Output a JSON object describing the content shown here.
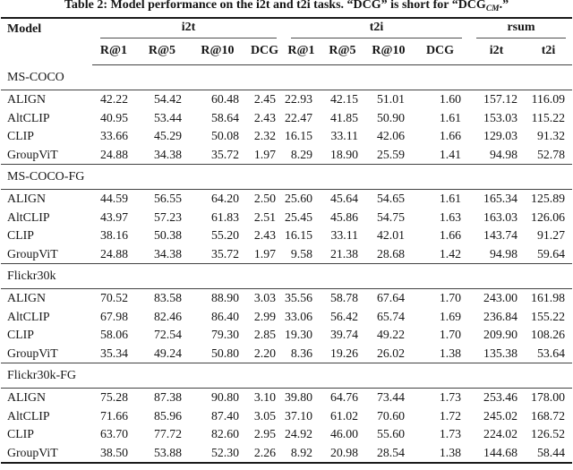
{
  "title": {
    "prefix": "Table 2: Model performance on the i2t and t2i tasks. “DCG” is short for “DCG",
    "subscript": "CM",
    "suffix": ".”"
  },
  "header": {
    "model": "Model",
    "groups": [
      {
        "label": "i2t",
        "cols": [
          "R@1",
          "R@5",
          "R@10",
          "DCG"
        ]
      },
      {
        "label": "t2i",
        "cols": [
          "R@1",
          "R@5",
          "R@10",
          "DCG"
        ]
      },
      {
        "label": "rsum",
        "cols": [
          "i2t",
          "t2i"
        ]
      }
    ]
  },
  "sections": [
    {
      "name": "MS-COCO",
      "rows": [
        {
          "model": "ALIGN",
          "values": [
            "42.22",
            "54.42",
            "60.48",
            "2.45",
            "22.93",
            "42.15",
            "51.01",
            "1.60",
            "157.12",
            "116.09"
          ]
        },
        {
          "model": "AltCLIP",
          "values": [
            "40.95",
            "53.44",
            "58.64",
            "2.43",
            "22.47",
            "41.85",
            "50.90",
            "1.61",
            "153.03",
            "115.22"
          ]
        },
        {
          "model": "CLIP",
          "values": [
            "33.66",
            "45.29",
            "50.08",
            "2.32",
            "16.15",
            "33.11",
            "42.06",
            "1.66",
            "129.03",
            "91.32"
          ]
        },
        {
          "model": "GroupViT",
          "values": [
            "24.88",
            "34.38",
            "35.72",
            "1.97",
            "8.29",
            "18.90",
            "25.59",
            "1.41",
            "94.98",
            "52.78"
          ]
        }
      ]
    },
    {
      "name": "MS-COCO-FG",
      "rows": [
        {
          "model": "ALIGN",
          "values": [
            "44.59",
            "56.55",
            "64.20",
            "2.50",
            "25.60",
            "45.64",
            "54.65",
            "1.61",
            "165.34",
            "125.89"
          ]
        },
        {
          "model": "AltCLIP",
          "values": [
            "43.97",
            "57.23",
            "61.83",
            "2.51",
            "25.45",
            "45.86",
            "54.75",
            "1.63",
            "163.03",
            "126.06"
          ]
        },
        {
          "model": "CLIP",
          "values": [
            "38.16",
            "50.38",
            "55.20",
            "2.43",
            "16.15",
            "33.11",
            "42.01",
            "1.66",
            "143.74",
            "91.27"
          ]
        },
        {
          "model": "GroupViT",
          "values": [
            "24.88",
            "34.38",
            "35.72",
            "1.97",
            "9.58",
            "21.38",
            "28.68",
            "1.42",
            "94.98",
            "59.64"
          ]
        }
      ]
    },
    {
      "name": "Flickr30k",
      "rows": [
        {
          "model": "ALIGN",
          "values": [
            "70.52",
            "83.58",
            "88.90",
            "3.03",
            "35.56",
            "58.78",
            "67.64",
            "1.70",
            "243.00",
            "161.98"
          ]
        },
        {
          "model": "AltCLIP",
          "values": [
            "67.98",
            "82.46",
            "86.40",
            "2.99",
            "33.06",
            "56.42",
            "65.74",
            "1.69",
            "236.84",
            "155.22"
          ]
        },
        {
          "model": "CLIP",
          "values": [
            "58.06",
            "72.54",
            "79.30",
            "2.85",
            "19.30",
            "39.74",
            "49.22",
            "1.70",
            "209.90",
            "108.26"
          ]
        },
        {
          "model": "GroupViT",
          "values": [
            "35.34",
            "49.24",
            "50.80",
            "2.20",
            "8.36",
            "19.26",
            "26.02",
            "1.38",
            "135.38",
            "53.64"
          ]
        }
      ]
    },
    {
      "name": "Flickr30k-FG",
      "rows": [
        {
          "model": "ALIGN",
          "values": [
            "75.28",
            "87.38",
            "90.80",
            "3.10",
            "39.80",
            "64.76",
            "73.44",
            "1.73",
            "253.46",
            "178.00"
          ]
        },
        {
          "model": "AltCLIP",
          "values": [
            "71.66",
            "85.96",
            "87.40",
            "3.05",
            "37.10",
            "61.02",
            "70.60",
            "1.72",
            "245.02",
            "168.72"
          ]
        },
        {
          "model": "CLIP",
          "values": [
            "63.70",
            "77.72",
            "82.60",
            "2.95",
            "24.92",
            "46.00",
            "55.60",
            "1.73",
            "224.02",
            "126.52"
          ]
        },
        {
          "model": "GroupViT",
          "values": [
            "38.50",
            "53.88",
            "52.30",
            "2.26",
            "8.92",
            "20.98",
            "28.54",
            "1.38",
            "144.68",
            "58.44"
          ]
        }
      ]
    }
  ],
  "colors": {
    "text": "#161616",
    "rule_thin": "#424242",
    "rule_thick": "#1a1a1a",
    "background": "#ffffff"
  }
}
